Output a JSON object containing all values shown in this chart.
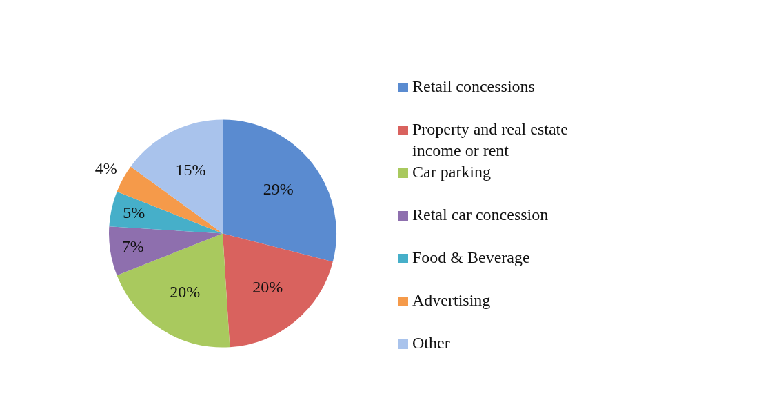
{
  "chart_data": {
    "type": "pie",
    "categories": [
      "Retail concessions",
      "Property and real estate income or rent",
      "Car parking",
      "Retal car concession",
      "Food & Beverage",
      "Advertising",
      "Other"
    ],
    "values": [
      29,
      20,
      20,
      7,
      5,
      4,
      15
    ],
    "colors": [
      "#5a8bd0",
      "#d9625e",
      "#a9c95e",
      "#8e6fae",
      "#46afc9",
      "#f59a4a",
      "#a9c3ec"
    ],
    "value_labels": [
      "29%",
      "20%",
      "20%",
      "7%",
      "5%",
      "4%",
      "15%"
    ],
    "legend": "right"
  }
}
